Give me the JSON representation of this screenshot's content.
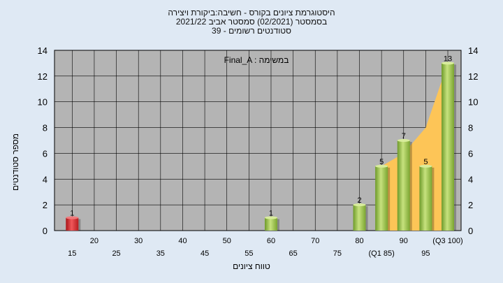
{
  "title_lines": [
    "היסטוגרמת ציונים בקורס - חשיבה:ביקורת ויצירה",
    "בסמסטר  (02/2021)  סמסטר אביב 2021/22",
    "סטודנטים רשומים - 39"
  ],
  "colors": {
    "background": "#dfe9f4",
    "plot_bg": "#b4b4b4",
    "bar_green": "#8dbb3f",
    "bar_red": "#d9262a",
    "area": "#fdc557",
    "grid": "#000000"
  },
  "chart_data": {
    "type": "bar",
    "annotation": "Final_A : במשימה",
    "xlabel": "טווח ציונים",
    "ylabel": "מספר סטודנטים",
    "ylim": [
      0,
      14
    ],
    "yticks": [
      0,
      2,
      4,
      6,
      8,
      10,
      12,
      14
    ],
    "grid": true,
    "x_tick_labels": [
      {
        "label": "15",
        "row": 2,
        "at": 15
      },
      {
        "label": "20",
        "row": 1,
        "at": 20
      },
      {
        "label": "25",
        "row": 2,
        "at": 25
      },
      {
        "label": "30",
        "row": 1,
        "at": 30
      },
      {
        "label": "35",
        "row": 2,
        "at": 35
      },
      {
        "label": "40",
        "row": 1,
        "at": 40
      },
      {
        "label": "45",
        "row": 2,
        "at": 45
      },
      {
        "label": "50",
        "row": 1,
        "at": 50
      },
      {
        "label": "55",
        "row": 2,
        "at": 55
      },
      {
        "label": "60",
        "row": 1,
        "at": 60
      },
      {
        "label": "65",
        "row": 2,
        "at": 65
      },
      {
        "label": "70",
        "row": 1,
        "at": 70
      },
      {
        "label": "75",
        "row": 2,
        "at": 75
      },
      {
        "label": "80",
        "row": 1,
        "at": 80
      },
      {
        "label": "(Q1 85)",
        "row": 2,
        "at": 85
      },
      {
        "label": "90",
        "row": 1,
        "at": 90
      },
      {
        "label": "95",
        "row": 2,
        "at": 95
      },
      {
        "label": "(Q3 100)",
        "row": 1,
        "at": 100
      }
    ],
    "bars": [
      {
        "x": 15,
        "value": 1,
        "color": "red"
      },
      {
        "x": 60,
        "value": 1,
        "color": "green"
      },
      {
        "x": 80,
        "value": 2,
        "color": "green"
      },
      {
        "x": 85,
        "value": 5,
        "color": "green"
      },
      {
        "x": 90,
        "value": 7,
        "color": "green"
      },
      {
        "x": 95,
        "value": 5,
        "color": "green"
      },
      {
        "x": 100,
        "value": 13,
        "color": "green"
      }
    ],
    "area": {
      "x": [
        85,
        90,
        95,
        100
      ],
      "values": [
        5,
        6,
        8,
        13
      ]
    }
  }
}
